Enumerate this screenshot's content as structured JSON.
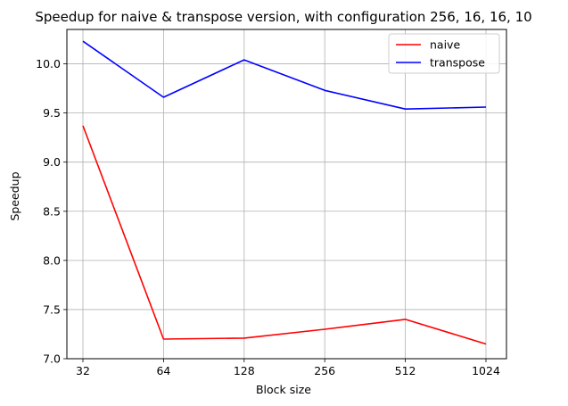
{
  "chart_data": {
    "type": "line",
    "title": "Speedup for naive & transpose version, with configuration 256, 16, 16, 10",
    "xlabel": "Block size",
    "ylabel": "Speedup",
    "categories": [
      "32",
      "64",
      "128",
      "256",
      "512",
      "1024"
    ],
    "ylim": [
      7.0,
      10.35
    ],
    "yticks": [
      7.0,
      7.5,
      8.0,
      8.5,
      9.0,
      9.5,
      10.0
    ],
    "ytick_labels": [
      "7.0",
      "7.5",
      "8.0",
      "8.5",
      "9.0",
      "9.5",
      "10.0"
    ],
    "grid": true,
    "legend_position": "top-right",
    "series": [
      {
        "name": "naive",
        "color": "#ff0000",
        "values": [
          9.37,
          7.2,
          7.21,
          7.3,
          7.4,
          7.15
        ]
      },
      {
        "name": "transpose",
        "color": "#0000ff",
        "values": [
          10.23,
          9.66,
          10.04,
          9.73,
          9.54,
          9.56
        ]
      }
    ]
  }
}
